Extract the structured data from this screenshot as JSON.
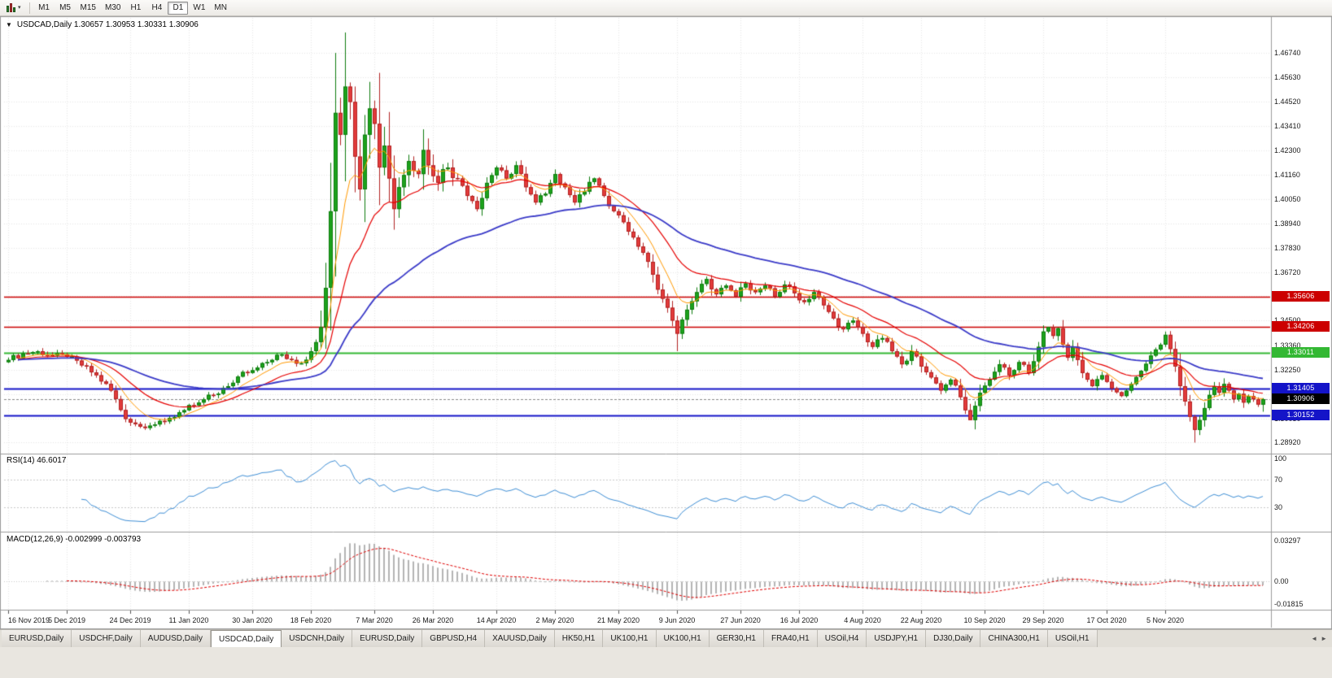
{
  "toolbar": {
    "chart_type_icon": "candlestick-chart-icon",
    "dropdown_caret": "▾",
    "timeframes": [
      {
        "label": "M1",
        "active": false
      },
      {
        "label": "M5",
        "active": false
      },
      {
        "label": "M15",
        "active": false
      },
      {
        "label": "M30",
        "active": false
      },
      {
        "label": "H1",
        "active": false
      },
      {
        "label": "H4",
        "active": false
      },
      {
        "label": "D1",
        "active": true
      },
      {
        "label": "W1",
        "active": false
      },
      {
        "label": "MN",
        "active": false
      }
    ]
  },
  "chart": {
    "collapse_arrow": "▼",
    "title": "USDCAD,Daily 1.30657 1.30953 1.30331 1.30906"
  },
  "chart_data": {
    "type": "candlestick",
    "symbol": "USDCAD",
    "period": "Daily",
    "last_bar": {
      "open": 1.30657,
      "high": 1.30953,
      "low": 1.30331,
      "close": 1.30906
    },
    "bars_total": 258,
    "y_range": [
      1.2849,
      1.476
    ],
    "y_axis_labels": [
      "1.46740",
      "1.45630",
      "1.44520",
      "1.43410",
      "1.42300",
      "1.41160",
      "1.40050",
      "1.38940",
      "1.37830",
      "1.36720",
      "1.35610",
      "1.34500",
      "1.33360",
      "1.32250",
      "1.31140",
      "1.30030",
      "1.28920"
    ],
    "x_axis": [
      {
        "label": "16 Nov 2019",
        "bar": 0
      },
      {
        "label": "5 Dec 2019",
        "bar": 12
      },
      {
        "label": "24 Dec 2019",
        "bar": 25
      },
      {
        "label": "11 Jan 2020",
        "bar": 37
      },
      {
        "label": "30 Jan 2020",
        "bar": 50
      },
      {
        "label": "18 Feb 2020",
        "bar": 62
      },
      {
        "label": "7 Mar 2020",
        "bar": 75
      },
      {
        "label": "26 Mar 2020",
        "bar": 87
      },
      {
        "label": "14 Apr 2020",
        "bar": 100
      },
      {
        "label": "2 May 2020",
        "bar": 112
      },
      {
        "label": "21 May 2020",
        "bar": 125
      },
      {
        "label": "9 Jun 2020",
        "bar": 137
      },
      {
        "label": "27 Jun 2020",
        "bar": 150
      },
      {
        "label": "16 Jul 2020",
        "bar": 162
      },
      {
        "label": "4 Aug 2020",
        "bar": 175
      },
      {
        "label": "22 Aug 2020",
        "bar": 187
      },
      {
        "label": "10 Sep 2020",
        "bar": 200
      },
      {
        "label": "29 Sep 2020",
        "bar": 212
      },
      {
        "label": "17 Oct 2020",
        "bar": 225
      },
      {
        "label": "5 Nov 2020",
        "bar": 237
      }
    ],
    "price_anchors": [
      [
        0,
        1.327
      ],
      [
        3,
        1.33
      ],
      [
        6,
        1.331
      ],
      [
        9,
        1.329
      ],
      [
        12,
        1.3285
      ],
      [
        15,
        1.3245
      ],
      [
        18,
        1.32
      ],
      [
        21,
        1.313
      ],
      [
        24,
        1.3
      ],
      [
        27,
        1.2965
      ],
      [
        30,
        1.2975
      ],
      [
        33,
        1.3005
      ],
      [
        36,
        1.304
      ],
      [
        39,
        1.3075
      ],
      [
        42,
        1.311
      ],
      [
        45,
        1.315
      ],
      [
        48,
        1.3215
      ],
      [
        51,
        1.3235
      ],
      [
        54,
        1.327
      ],
      [
        56,
        1.3295
      ],
      [
        58,
        1.327
      ],
      [
        60,
        1.3255
      ],
      [
        62,
        1.331
      ],
      [
        64,
        1.342
      ],
      [
        65,
        1.36
      ],
      [
        66,
        1.395
      ],
      [
        67,
        1.44
      ],
      [
        68,
        1.43
      ],
      [
        69,
        1.452
      ],
      [
        70,
        1.445
      ],
      [
        71,
        1.42
      ],
      [
        72,
        1.405
      ],
      [
        73,
        1.43
      ],
      [
        74,
        1.442
      ],
      [
        75,
        1.435
      ],
      [
        76,
        1.415
      ],
      [
        77,
        1.425
      ],
      [
        78,
        1.41
      ],
      [
        79,
        1.396
      ],
      [
        80,
        1.406
      ],
      [
        82,
        1.418
      ],
      [
        84,
        1.412
      ],
      [
        85,
        1.423
      ],
      [
        86,
        1.416
      ],
      [
        88,
        1.408
      ],
      [
        90,
        1.415
      ],
      [
        92,
        1.41
      ],
      [
        94,
        1.402
      ],
      [
        96,
        1.396
      ],
      [
        98,
        1.408
      ],
      [
        100,
        1.415
      ],
      [
        102,
        1.41
      ],
      [
        104,
        1.416
      ],
      [
        106,
        1.406
      ],
      [
        108,
        1.399
      ],
      [
        110,
        1.403
      ],
      [
        112,
        1.412
      ],
      [
        114,
        1.406
      ],
      [
        116,
        1.399
      ],
      [
        118,
        1.404
      ],
      [
        120,
        1.41
      ],
      [
        122,
        1.402
      ],
      [
        124,
        1.395
      ],
      [
        126,
        1.39
      ],
      [
        128,
        1.383
      ],
      [
        130,
        1.376
      ],
      [
        132,
        1.366
      ],
      [
        134,
        1.355
      ],
      [
        136,
        1.345
      ],
      [
        137,
        1.339
      ],
      [
        139,
        1.35
      ],
      [
        141,
        1.358
      ],
      [
        143,
        1.364
      ],
      [
        145,
        1.357
      ],
      [
        147,
        1.361
      ],
      [
        149,
        1.356
      ],
      [
        151,
        1.362
      ],
      [
        153,
        1.358
      ],
      [
        155,
        1.361
      ],
      [
        157,
        1.356
      ],
      [
        159,
        1.3615
      ],
      [
        161,
        1.3575
      ],
      [
        163,
        1.3535
      ],
      [
        165,
        1.358
      ],
      [
        167,
        1.352
      ],
      [
        169,
        1.346
      ],
      [
        171,
        1.341
      ],
      [
        173,
        1.345
      ],
      [
        175,
        1.339
      ],
      [
        177,
        1.333
      ],
      [
        179,
        1.337
      ],
      [
        181,
        1.331
      ],
      [
        183,
        1.325
      ],
      [
        185,
        1.331
      ],
      [
        187,
        1.324
      ],
      [
        189,
        1.319
      ],
      [
        191,
        1.313
      ],
      [
        193,
        1.318
      ],
      [
        195,
        1.31
      ],
      [
        196,
        1.304
      ],
      [
        197,
        1.2995
      ],
      [
        198,
        1.306
      ],
      [
        199,
        1.312
      ],
      [
        201,
        1.318
      ],
      [
        203,
        1.325
      ],
      [
        205,
        1.32
      ],
      [
        207,
        1.326
      ],
      [
        209,
        1.321
      ],
      [
        211,
        1.333
      ],
      [
        212,
        1.34
      ],
      [
        213,
        1.342
      ],
      [
        214,
        1.338
      ],
      [
        215,
        1.3415
      ],
      [
        216,
        1.334
      ],
      [
        217,
        1.328
      ],
      [
        218,
        1.333
      ],
      [
        219,
        1.327
      ],
      [
        220,
        1.321
      ],
      [
        222,
        1.315
      ],
      [
        224,
        1.32
      ],
      [
        226,
        1.314
      ],
      [
        228,
        1.3105
      ],
      [
        230,
        1.316
      ],
      [
        232,
        1.322
      ],
      [
        234,
        1.329
      ],
      [
        236,
        1.334
      ],
      [
        237,
        1.3385
      ],
      [
        238,
        1.332
      ],
      [
        239,
        1.324
      ],
      [
        240,
        1.315
      ],
      [
        241,
        1.308
      ],
      [
        242,
        1.301
      ],
      [
        243,
        1.295
      ],
      [
        244,
        1.2995
      ],
      [
        245,
        1.305
      ],
      [
        246,
        1.311
      ],
      [
        247,
        1.315
      ],
      [
        248,
        1.312
      ],
      [
        249,
        1.316
      ],
      [
        250,
        1.313
      ],
      [
        251,
        1.309
      ],
      [
        252,
        1.3115
      ],
      [
        253,
        1.3075
      ],
      [
        254,
        1.3105
      ],
      [
        255,
        1.309
      ],
      [
        256,
        1.3066
      ],
      [
        257,
        1.30906
      ]
    ],
    "forced_highs": [
      [
        67,
        1.4674
      ],
      [
        213,
        1.3421
      ],
      [
        215,
        1.3418
      ],
      [
        237,
        1.34
      ]
    ],
    "forced_lows": [
      [
        137,
        1.331
      ],
      [
        197,
        1.2995
      ],
      [
        243,
        1.2892
      ]
    ],
    "levels": [
      {
        "value": 1.35606,
        "label": "1.35606",
        "color": "#cc0000",
        "width": 1.4
      },
      {
        "value": 1.34206,
        "label": "1.34206",
        "color": "#cc0000",
        "width": 1.4
      },
      {
        "value": 1.33011,
        "label": "1.33011",
        "color": "#33b833",
        "width": 2
      },
      {
        "value": 1.31405,
        "label": "1.31405",
        "color": "#1414c8",
        "width": 2
      },
      {
        "value": 1.30152,
        "label": "1.30152",
        "color": "#1414c8",
        "width": 2
      }
    ],
    "current_price": {
      "value": 1.30906,
      "label": "1.30906",
      "badge_color": "#000000"
    },
    "moving_averages": [
      {
        "name": "fast",
        "period": 8,
        "color": "#ff9900",
        "width": 1
      },
      {
        "name": "medium",
        "period": 20,
        "color": "#e60000",
        "width": 1.2
      },
      {
        "name": "slow",
        "period": 55,
        "color": "#3a3ac8",
        "width": 1.8
      }
    ],
    "candle_colors": {
      "up": "#1ca31c",
      "up_border": "#0e7c0e",
      "down": "#e23b3b",
      "down_border": "#b22222"
    },
    "indicators": {
      "rsi": {
        "label": "RSI(14) 46.6017",
        "period": 14,
        "current": 46.6017,
        "color": "#3f8fd6",
        "level_lines": [
          70,
          30
        ],
        "axis_labels": [
          "100",
          "70",
          "30"
        ]
      },
      "macd": {
        "label": "MACD(12,26,9) -0.002999 -0.003793",
        "fast": 12,
        "slow": 26,
        "signal": 9,
        "current_main": -0.002999,
        "current_signal": -0.003793,
        "axis_labels": [
          "0.03297",
          "0.00",
          "-0.01815"
        ],
        "y_range": [
          -0.02,
          0.035
        ],
        "histogram_color": "#b4b4b4",
        "signal_color": "#e00000"
      }
    }
  },
  "tabbar": {
    "scroll_left": "◄",
    "scroll_right": "►",
    "tabs": [
      {
        "label": "EURUSD,Daily",
        "active": false
      },
      {
        "label": "USDCHF,Daily",
        "active": false
      },
      {
        "label": "AUDUSD,Daily",
        "active": false
      },
      {
        "label": "USDCAD,Daily",
        "active": true
      },
      {
        "label": "USDCNH,Daily",
        "active": false
      },
      {
        "label": "EURUSD,Daily",
        "active": false
      },
      {
        "label": "GBPUSD,H4",
        "active": false
      },
      {
        "label": "XAUUSD,Daily",
        "active": false
      },
      {
        "label": "HK50,H1",
        "active": false
      },
      {
        "label": "UK100,H1",
        "active": false
      },
      {
        "label": "UK100,H1",
        "active": false
      },
      {
        "label": "GER30,H1",
        "active": false
      },
      {
        "label": "FRA40,H1",
        "active": false
      },
      {
        "label": "USOil,H4",
        "active": false
      },
      {
        "label": "USDJPY,H1",
        "active": false
      },
      {
        "label": "DJ30,Daily",
        "active": false
      },
      {
        "label": "CHINA300,H1",
        "active": false
      },
      {
        "label": "USOil,H1",
        "active": false
      }
    ]
  }
}
